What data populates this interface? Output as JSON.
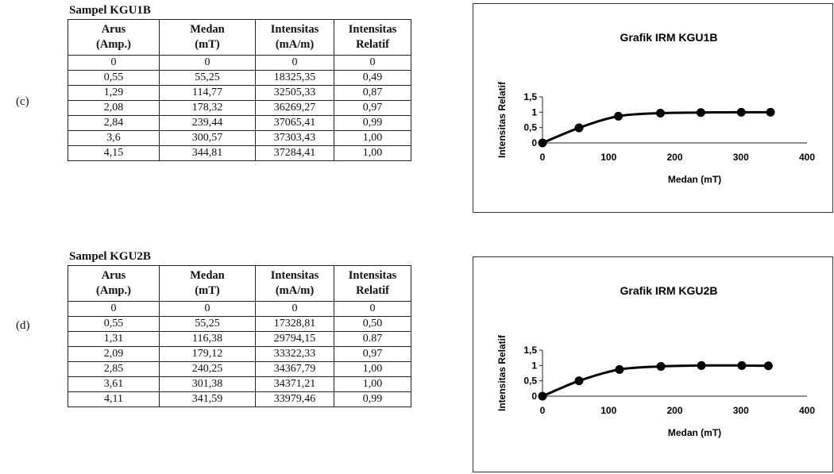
{
  "sections": [
    {
      "label": "(c)",
      "sample_title": "Sampel KGU1B",
      "table": {
        "headers": [
          [
            "Arus",
            "(Amp.)"
          ],
          [
            "Medan",
            "(mT)"
          ],
          [
            "Intensitas",
            "(mA/m)"
          ],
          [
            "Intensitas",
            "Relatif"
          ]
        ],
        "rows": [
          [
            "0",
            "0",
            "0",
            "0"
          ],
          [
            "0,55",
            "55,25",
            "18325,35",
            "0,49"
          ],
          [
            "1,29",
            "114,77",
            "32505,33",
            "0,87"
          ],
          [
            "2,08",
            "178,32",
            "36269,27",
            "0,97"
          ],
          [
            "2,84",
            "239,44",
            "37065,41",
            "0,99"
          ],
          [
            "3,6",
            "300,57",
            "37303,43",
            "1,00"
          ],
          [
            "4,15",
            "344,81",
            "37284,41",
            "1,00"
          ]
        ]
      }
    },
    {
      "label": "(d)",
      "sample_title": "Sampel KGU2B",
      "table": {
        "headers": [
          [
            "Arus",
            "(Amp.)"
          ],
          [
            "Medan",
            "(mT)"
          ],
          [
            "Intensitas",
            "(mA/m)"
          ],
          [
            "Intensitas",
            "Relatif"
          ]
        ],
        "rows": [
          [
            "0",
            "0",
            "0",
            "0"
          ],
          [
            "0,55",
            "55,25",
            "17328,81",
            "0,50"
          ],
          [
            "1,31",
            "116,38",
            "29794,15",
            "0.87"
          ],
          [
            "2,09",
            "179,12",
            "33322,33",
            "0,97"
          ],
          [
            "2,85",
            "240,25",
            "34367,79",
            "1,00"
          ],
          [
            "3,61",
            "301,38",
            "34371,21",
            "1,00"
          ],
          [
            "4,11",
            "341,59",
            "33979,46",
            "0,99"
          ]
        ]
      }
    }
  ],
  "chart_data": [
    {
      "type": "line",
      "title": "Grafik IRM KGU1B",
      "xlabel": "Medan (mT)",
      "ylabel": "Intensitas Relatif",
      "xlim": [
        0,
        400
      ],
      "ylim": [
        0,
        1.5
      ],
      "xticks": [
        "0",
        "100",
        "200",
        "300",
        "400"
      ],
      "yticks": [
        "0",
        "0,5",
        "1",
        "1,5"
      ],
      "grid": false,
      "x": [
        0,
        55.25,
        114.77,
        178.32,
        239.44,
        300.57,
        344.81
      ],
      "y": [
        0,
        0.49,
        0.87,
        0.97,
        0.99,
        1.0,
        1.0
      ],
      "marker": "circle",
      "color": "#000000"
    },
    {
      "type": "line",
      "title": "Grafik IRM KGU2B",
      "xlabel": "Medan (mT)",
      "ylabel": "Intensitas Relatif",
      "xlim": [
        0,
        400
      ],
      "ylim": [
        0,
        1.5
      ],
      "xticks": [
        "0",
        "100",
        "200",
        "300",
        "400"
      ],
      "yticks": [
        "0",
        "0,5",
        "1",
        "1,5"
      ],
      "grid": false,
      "x": [
        0,
        55.25,
        116.38,
        179.12,
        240.25,
        301.38,
        341.59
      ],
      "y": [
        0,
        0.5,
        0.87,
        0.97,
        1.0,
        1.0,
        0.99
      ],
      "marker": "circle",
      "color": "#000000"
    }
  ]
}
